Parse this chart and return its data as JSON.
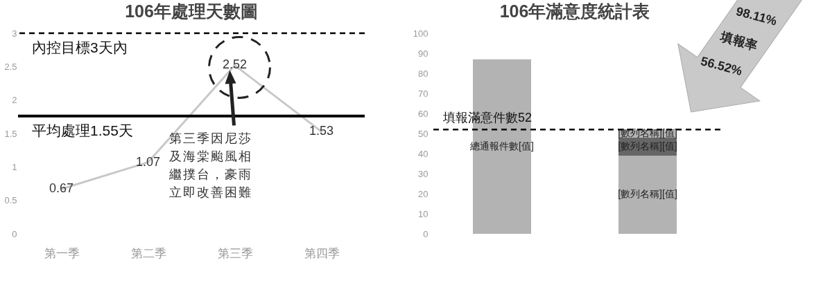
{
  "chart_data": [
    {
      "type": "line",
      "title": "106年處理天數圖",
      "categories": [
        "第一季",
        "第二季",
        "第三季",
        "第四季"
      ],
      "series": [
        {
          "color": "#c8c8c8",
          "values": [
            0.67,
            1.07,
            2.52,
            1.53
          ]
        }
      ],
      "ylim": [
        0,
        3
      ],
      "yticks": [
        0,
        0.5,
        1,
        1.5,
        2,
        2.5,
        3
      ],
      "data_labels": true,
      "ref_lines": [
        {
          "axis": "y",
          "value": 3,
          "label": "內控目標3天內",
          "line_style": "dashed",
          "color": "#000000"
        },
        {
          "axis": "y",
          "value": 1.76,
          "label": "平均處理1.55天",
          "line_style": "solid",
          "color": "#000000"
        }
      ],
      "annotations": [
        "第三季因尼莎及海棠颱風相繼撲台，豪雨立即改善困難"
      ]
    },
    {
      "type": "bar",
      "title": "106年滿意度統計表",
      "categories": [
        null,
        null
      ],
      "stacked": true,
      "series": [
        {
          "color": "#b3b3b3",
          "values": [
            87,
            39
          ],
          "value_labels": [
            "總通報件數[值]",
            "[數列名稱][值]"
          ]
        },
        {
          "color": "#666666",
          "values": [
            null,
            9
          ],
          "value_labels": [
            null,
            "[數列名稱][值]"
          ]
        },
        {
          "color": "#b3b3b3",
          "values": [
            null,
            4
          ],
          "value_labels": [
            null,
            "[數列名稱][值]"
          ]
        }
      ],
      "ylim": [
        0,
        100
      ],
      "yticks": [
        0,
        10,
        20,
        30,
        40,
        50,
        60,
        70,
        80,
        90,
        100
      ],
      "tick_labels": "y",
      "ref_lines": [
        {
          "axis": "y",
          "value": 52,
          "label": "填報滿意件數52",
          "line_style": "dashed",
          "color": "#000000"
        }
      ],
      "annotations": [
        "98.11%",
        "填報率",
        "56.52%"
      ]
    }
  ]
}
